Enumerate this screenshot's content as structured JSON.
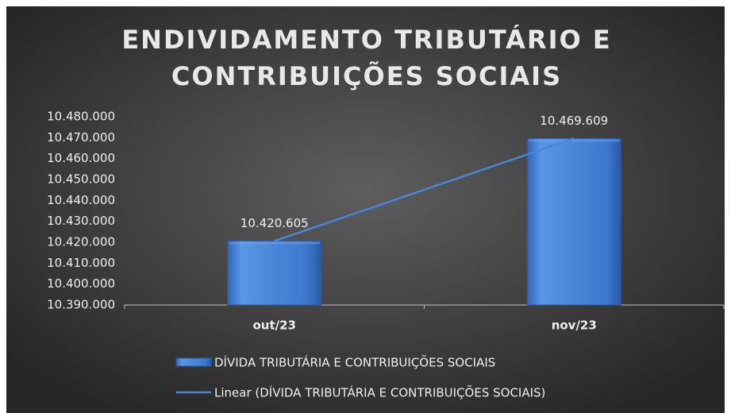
{
  "chart_data": {
    "type": "bar",
    "title": [
      "ENDIVIDAMENTO TRIBUTÁRIO E",
      "CONTRIBUIÇÕES SOCIAIS"
    ],
    "categories": [
      "out/23",
      "nov/23"
    ],
    "series": [
      {
        "name": "DÍVIDA TRIBUTÁRIA E CONTRIBUIÇÕES SOCIAIS",
        "color": "#4a86d8",
        "values": [
          10420605,
          10469609
        ],
        "value_labels": [
          "10.420.605",
          "10.469.609"
        ]
      }
    ],
    "trendline": {
      "type": "linear",
      "label": "Linear (DÍVIDA TRIBUTÁRIA E CONTRIBUIÇÕES SOCIAIS)",
      "color": "#4a86d8"
    },
    "ylim": [
      10390000,
      10480000
    ],
    "yticks": [
      {
        "value": 10390000,
        "label": "10.390.000"
      },
      {
        "value": 10400000,
        "label": "10.400.000"
      },
      {
        "value": 10410000,
        "label": "10.410.000"
      },
      {
        "value": 10420000,
        "label": "10.420.000"
      },
      {
        "value": 10430000,
        "label": "10.430.000"
      },
      {
        "value": 10440000,
        "label": "10.440.000"
      },
      {
        "value": 10450000,
        "label": "10.450.000"
      },
      {
        "value": 10460000,
        "label": "10.460.000"
      },
      {
        "value": 10470000,
        "label": "10.470.000"
      },
      {
        "value": 10480000,
        "label": "10.480.000"
      }
    ],
    "grid": false
  }
}
